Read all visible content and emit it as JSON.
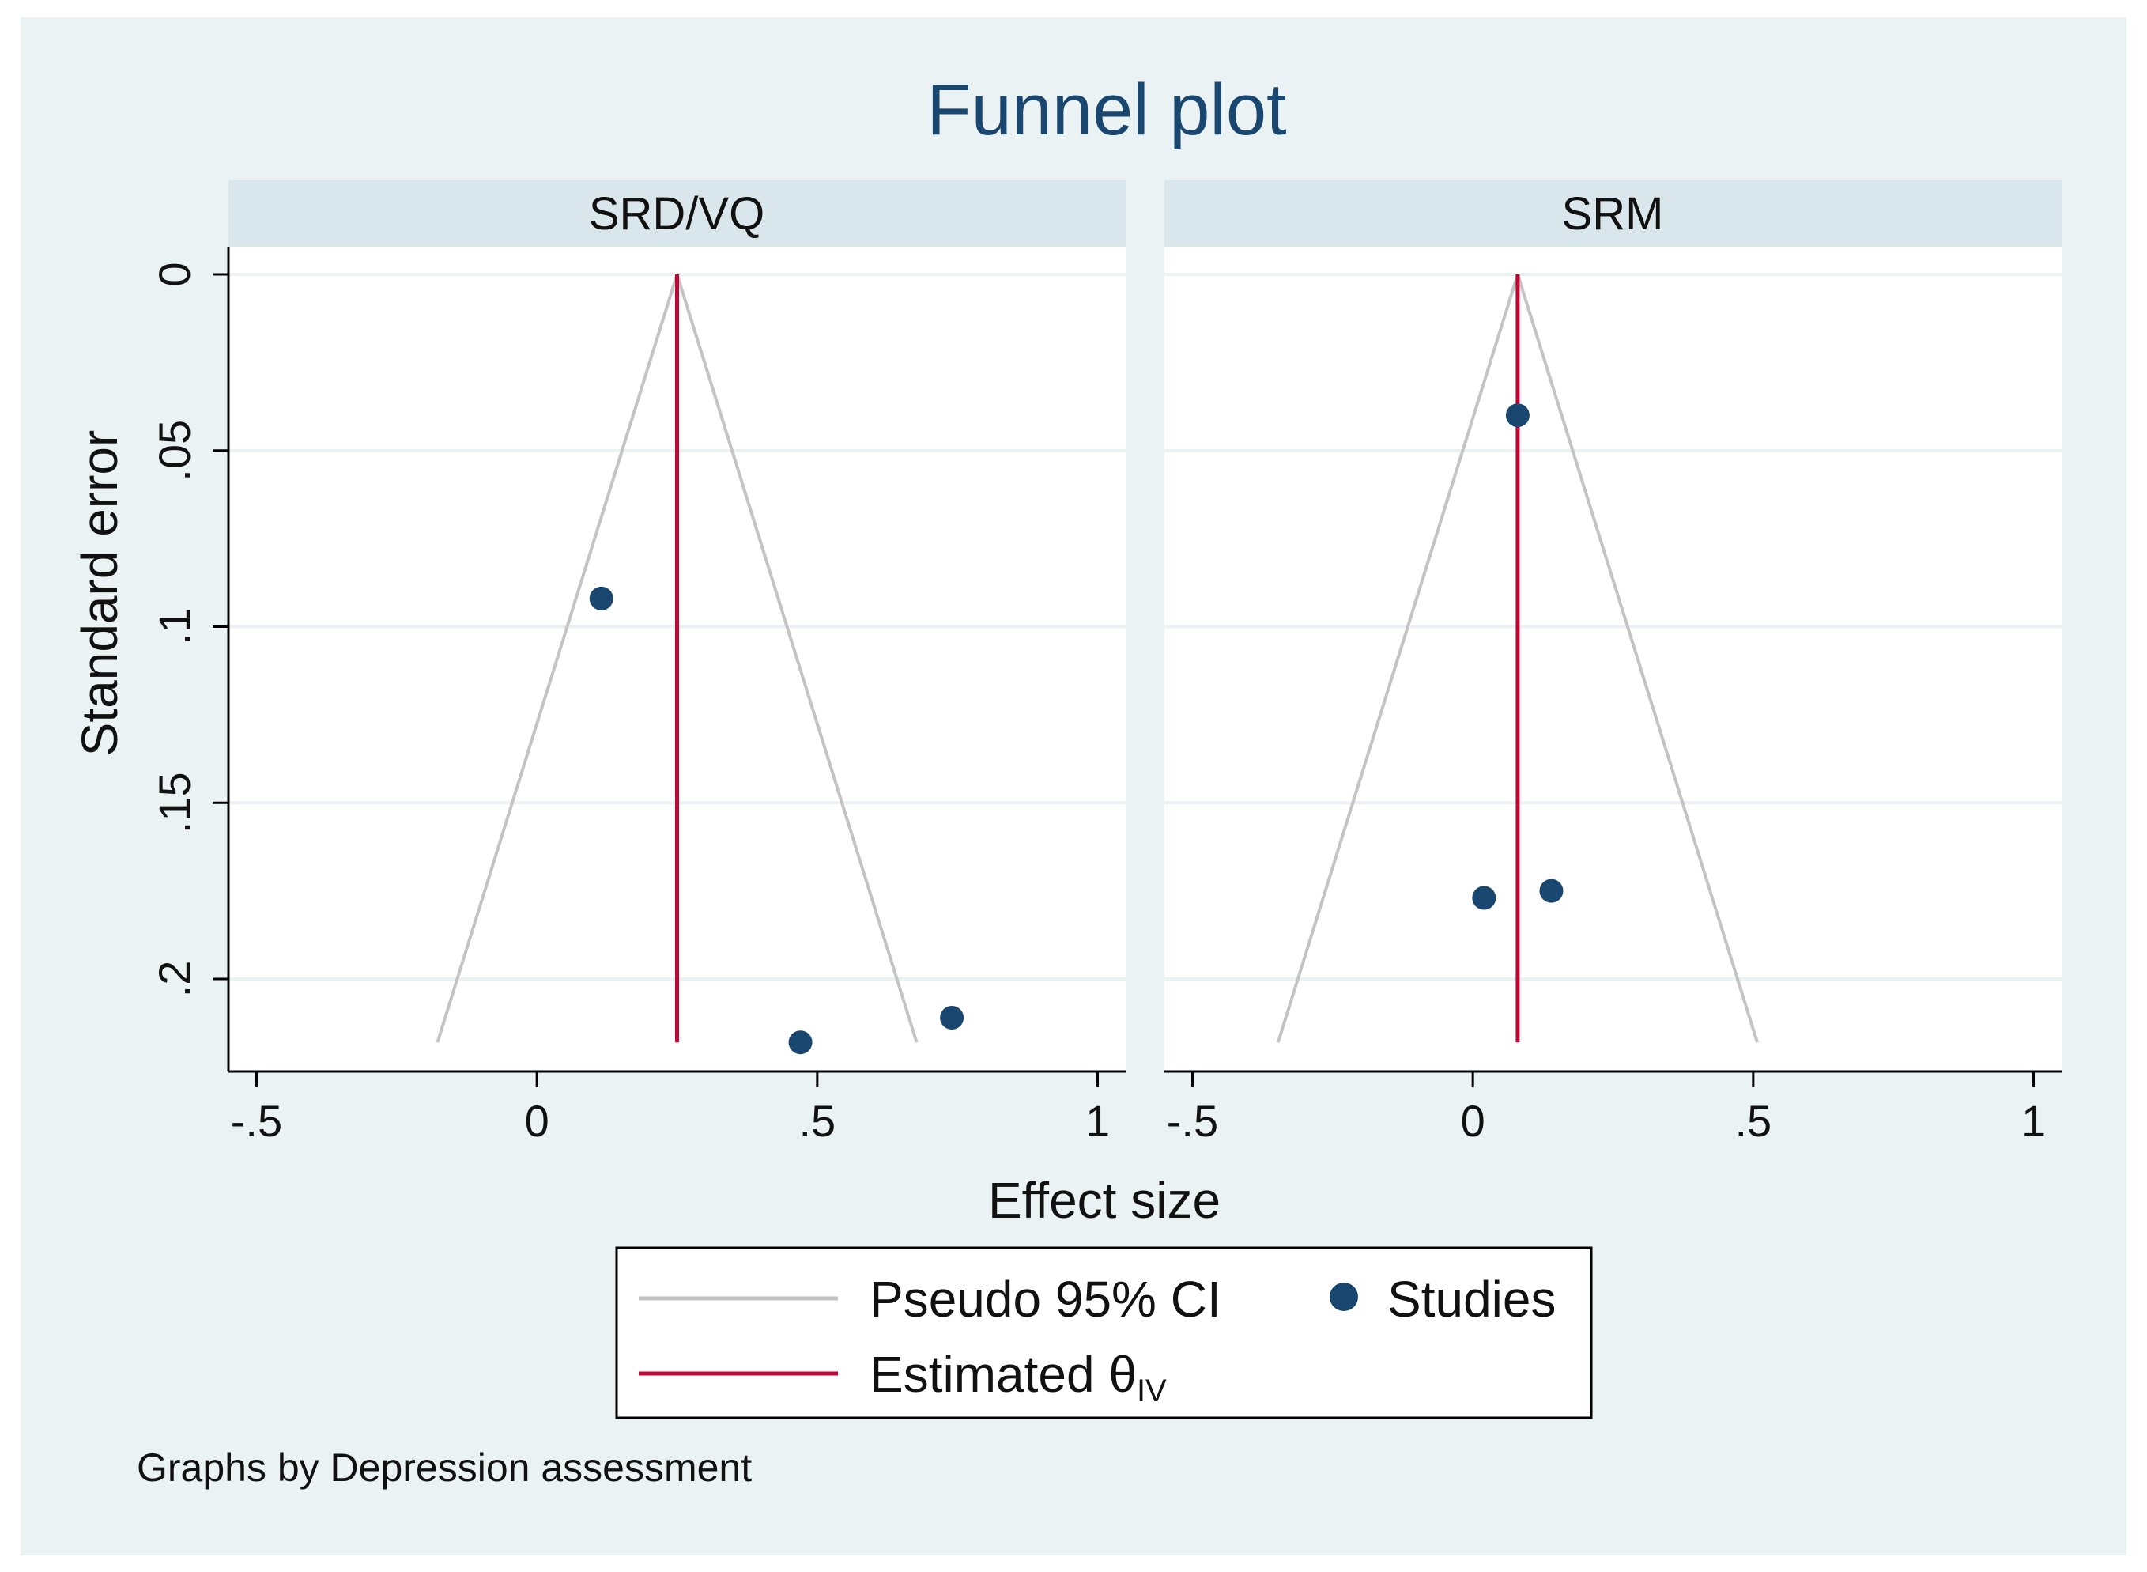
{
  "chart_data": {
    "type": "scatter",
    "title": "Funnel plot",
    "xlabel": "Effect size",
    "ylabel": "Standard error",
    "caption": "Graphs by Depression assessment",
    "xlim": [
      -0.55,
      1.05
    ],
    "ylim_reversed": [
      0,
      0.227
    ],
    "xticks": [
      -0.5,
      0,
      0.5,
      1
    ],
    "xtick_labels": [
      "-.5",
      "0",
      ".5",
      "1"
    ],
    "yticks": [
      0,
      0.05,
      0.1,
      0.15,
      0.2
    ],
    "ytick_labels": [
      "0",
      ".05",
      ".1",
      ".15",
      ".2"
    ],
    "grid": true,
    "legend": {
      "position": "bottom-center",
      "items": [
        {
          "label": "Pseudo 95% CI",
          "kind": "line",
          "color": "#c4c4c4"
        },
        {
          "label": "Studies",
          "kind": "marker",
          "color": "#1a476f"
        },
        {
          "label": "Estimated θ",
          "subscript": "IV",
          "kind": "line",
          "color": "#c10534"
        }
      ]
    },
    "colors": {
      "background": "#eaf2f3",
      "plot": "#ffffff",
      "strip": "#d9e6eb",
      "ci": "#c4c4c4",
      "estimate": "#c10534",
      "points": "#1a476f",
      "title": "#1a476f"
    },
    "panels": [
      {
        "name": "SRD/VQ",
        "estimate": 0.25,
        "ci_max_se": 0.218,
        "points": [
          {
            "x": 0.115,
            "y": 0.092
          },
          {
            "x": 0.47,
            "y": 0.218
          },
          {
            "x": 0.74,
            "y": 0.211
          }
        ]
      },
      {
        "name": "SRM",
        "estimate": 0.08,
        "ci_max_se": 0.218,
        "points": [
          {
            "x": 0.08,
            "y": 0.04
          },
          {
            "x": 0.02,
            "y": 0.177
          },
          {
            "x": 0.14,
            "y": 0.175
          }
        ]
      }
    ]
  }
}
